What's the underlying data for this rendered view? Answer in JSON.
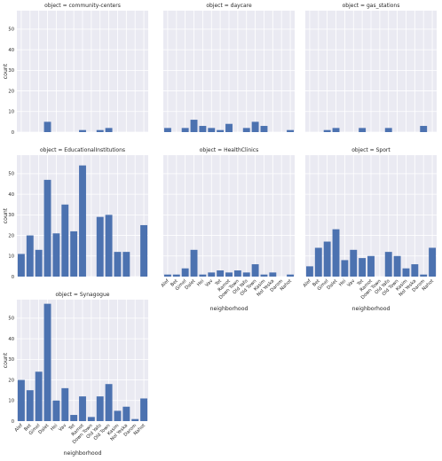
{
  "chart_data": {
    "type": "bar",
    "layout": "facet grid, 3 columns, shared y axis",
    "title_prefix": "object = ",
    "xlabel": "neighborhood",
    "ylabel": "count",
    "ylim": [
      0,
      59
    ],
    "yticks": [
      0,
      10,
      20,
      30,
      40,
      50
    ],
    "grid": true,
    "categories": [
      "Alef",
      "Bet",
      "Gimel",
      "Dalet",
      "Hei",
      "Vav",
      "Tet",
      "Ramot",
      "Down Town",
      "Old Yafo",
      "Old Town",
      "Kasim",
      "Nol Yeska",
      "Darom",
      "Nahot"
    ],
    "panels": [
      {
        "object": "community-centers",
        "values": [
          0,
          0,
          0,
          5,
          0,
          0,
          0,
          1,
          0,
          1,
          2,
          0,
          0,
          0,
          0
        ]
      },
      {
        "object": "daycare",
        "values": [
          2,
          0,
          2,
          6,
          3,
          2,
          1,
          4,
          0,
          2,
          5,
          3,
          0,
          0,
          1
        ]
      },
      {
        "object": "gas_stations",
        "values": [
          0,
          0,
          1,
          2,
          0,
          0,
          2,
          0,
          0,
          2,
          0,
          0,
          0,
          3,
          0
        ]
      },
      {
        "object": "EducationalInstitutions",
        "values": [
          11,
          20,
          13,
          47,
          21,
          35,
          22,
          54,
          0,
          29,
          30,
          12,
          12,
          0,
          25
        ]
      },
      {
        "object": "HealthClinics",
        "values": [
          1,
          1,
          4,
          13,
          1,
          2,
          3,
          2,
          3,
          2,
          6,
          1,
          2,
          0,
          1
        ]
      },
      {
        "object": "Sport",
        "values": [
          5,
          14,
          17,
          23,
          8,
          13,
          9,
          10,
          0,
          12,
          10,
          4,
          6,
          1,
          14
        ]
      },
      {
        "object": "Synagogue",
        "values": [
          20,
          15,
          24,
          57,
          10,
          16,
          3,
          12,
          2,
          12,
          18,
          5,
          7,
          1,
          11
        ]
      }
    ]
  }
}
